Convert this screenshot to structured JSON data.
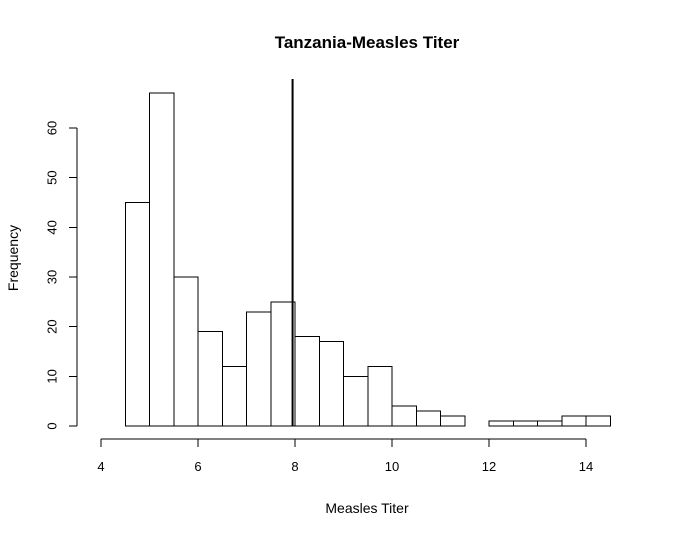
{
  "chart_data": {
    "type": "bar",
    "title": "Tanzania-Measles Titer",
    "xlabel": "Measles Titer",
    "ylabel": "Frequency",
    "xlim": [
      4,
      14.5
    ],
    "ylim": [
      0,
      70
    ],
    "x_ticks": [
      4,
      6,
      8,
      10,
      12,
      14
    ],
    "x_tick_labels": [
      "4",
      "6",
      "8",
      "10",
      "12",
      "14"
    ],
    "y_ticks": [
      0,
      10,
      20,
      30,
      40,
      50,
      60
    ],
    "y_tick_labels": [
      "0",
      "10",
      "20",
      "30",
      "40",
      "50",
      "60"
    ],
    "bin_width": 0.5,
    "bins": [
      {
        "start": 4.5,
        "end": 5.0,
        "count": 45
      },
      {
        "start": 5.0,
        "end": 5.5,
        "count": 67
      },
      {
        "start": 5.5,
        "end": 6.0,
        "count": 30
      },
      {
        "start": 6.0,
        "end": 6.5,
        "count": 19
      },
      {
        "start": 6.5,
        "end": 7.0,
        "count": 12
      },
      {
        "start": 7.0,
        "end": 7.5,
        "count": 23
      },
      {
        "start": 7.5,
        "end": 8.0,
        "count": 25
      },
      {
        "start": 8.0,
        "end": 8.5,
        "count": 18
      },
      {
        "start": 8.5,
        "end": 9.0,
        "count": 17
      },
      {
        "start": 9.0,
        "end": 9.5,
        "count": 10
      },
      {
        "start": 9.5,
        "end": 10.0,
        "count": 12
      },
      {
        "start": 10.0,
        "end": 10.5,
        "count": 4
      },
      {
        "start": 10.5,
        "end": 11.0,
        "count": 3
      },
      {
        "start": 11.0,
        "end": 11.5,
        "count": 2
      },
      {
        "start": 11.5,
        "end": 12.0,
        "count": 0
      },
      {
        "start": 12.0,
        "end": 12.5,
        "count": 1
      },
      {
        "start": 12.5,
        "end": 13.0,
        "count": 1
      },
      {
        "start": 13.0,
        "end": 13.5,
        "count": 1
      },
      {
        "start": 13.5,
        "end": 14.0,
        "count": 2
      },
      {
        "start": 14.0,
        "end": 14.5,
        "count": 2
      }
    ],
    "reference_line": {
      "x": 7.95
    },
    "bar_fill": "#ffffff",
    "bar_stroke": "#000000",
    "grid": false,
    "legend": "none"
  }
}
